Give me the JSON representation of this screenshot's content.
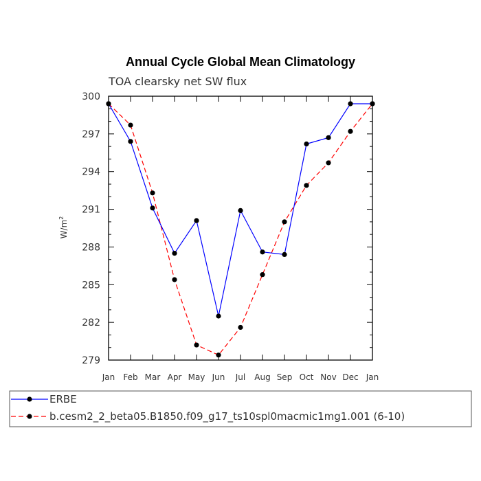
{
  "chart_data": {
    "type": "line",
    "title": "Annual Cycle Global Mean Climatology",
    "subtitle": "TOA clearsky net SW flux",
    "xlabel": "",
    "ylabel": "W/m",
    "ylabel_sup": "2",
    "ylim": [
      279,
      300
    ],
    "yticks": [
      279,
      282,
      285,
      288,
      291,
      294,
      297,
      300
    ],
    "categories": [
      "Jan",
      "Feb",
      "Mar",
      "Apr",
      "May",
      "Jun",
      "Jul",
      "Aug",
      "Sep",
      "Oct",
      "Nov",
      "Dec",
      "Jan"
    ],
    "grid": false,
    "legend_position": "bottom",
    "series": [
      {
        "name": "ERBE",
        "color": "#0000ff",
        "line_style": "solid",
        "marker": "filled-circle",
        "values": [
          299.4,
          296.4,
          291.1,
          287.5,
          290.1,
          282.5,
          290.9,
          287.6,
          287.4,
          296.2,
          296.7,
          299.4,
          299.4
        ]
      },
      {
        "name": "b.cesm2_2_beta05.B1850.f09_g17_ts10spl0macmic1mg1.001 (6-10)",
        "color": "#ff0000",
        "line_style": "dashed",
        "marker": "filled-circle",
        "values": [
          299.4,
          297.7,
          292.3,
          285.4,
          280.2,
          279.4,
          281.6,
          285.8,
          290.0,
          292.9,
          294.7,
          297.2,
          299.4
        ]
      }
    ]
  }
}
